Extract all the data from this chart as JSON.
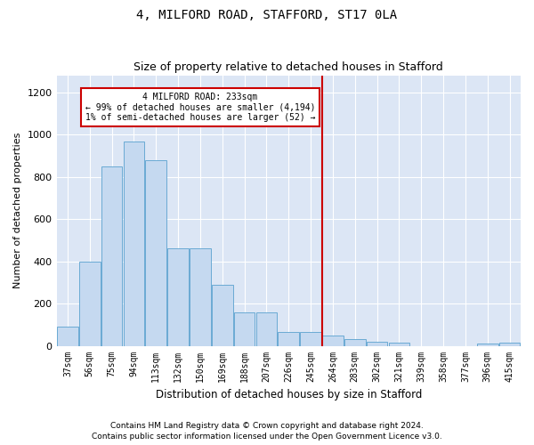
{
  "title": "4, MILFORD ROAD, STAFFORD, ST17 0LA",
  "subtitle": "Size of property relative to detached houses in Stafford",
  "xlabel": "Distribution of detached houses by size in Stafford",
  "ylabel": "Number of detached properties",
  "categories": [
    "37sqm",
    "56sqm",
    "75sqm",
    "94sqm",
    "113sqm",
    "132sqm",
    "150sqm",
    "169sqm",
    "188sqm",
    "207sqm",
    "226sqm",
    "245sqm",
    "264sqm",
    "283sqm",
    "302sqm",
    "321sqm",
    "339sqm",
    "358sqm",
    "377sqm",
    "396sqm",
    "415sqm"
  ],
  "values": [
    90,
    400,
    850,
    965,
    880,
    460,
    460,
    290,
    160,
    160,
    65,
    65,
    50,
    30,
    20,
    15,
    0,
    0,
    0,
    10,
    15
  ],
  "bar_color": "#c5d9f0",
  "bar_edge_color": "#6aaad4",
  "vline_pos": 11.5,
  "annotation_line1": "4 MILFORD ROAD: 233sqm",
  "annotation_line2": "← 99% of detached houses are smaller (4,194)",
  "annotation_line3": "1% of semi-detached houses are larger (52) →",
  "annotation_box_color": "#ffffff",
  "annotation_box_edge": "#cc0000",
  "vline_color": "#cc0000",
  "footer1": "Contains HM Land Registry data © Crown copyright and database right 2024.",
  "footer2": "Contains public sector information licensed under the Open Government Licence v3.0.",
  "ylim": [
    0,
    1280
  ],
  "yticks": [
    0,
    200,
    400,
    600,
    800,
    1000,
    1200
  ],
  "plot_background": "#dce6f5",
  "title_fontsize": 10,
  "subtitle_fontsize": 9,
  "footer_fontsize": 6.5
}
